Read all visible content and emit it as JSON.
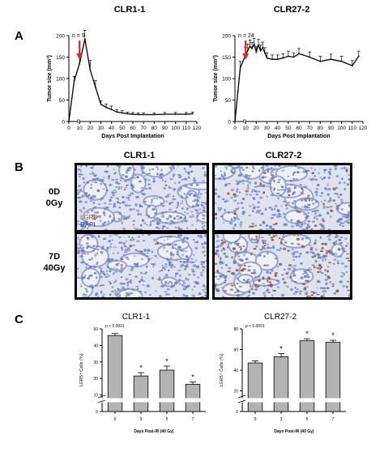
{
  "panels": {
    "a": "A",
    "b": "B",
    "c": "C"
  },
  "panel_a": {
    "left_title": "CLR1-1",
    "right_title": "CLR27-2",
    "left_n": "n = 9",
    "right_n": "n = 24"
  },
  "panel_b": {
    "col1": "CLR1-1",
    "col2": "CLR27-2",
    "row1_line1": "0D",
    "row1_line2": "0Gy",
    "row2_line1": "7D",
    "row2_line2": "40Gy",
    "stain1": "LGR5",
    "stain2": "DAPI"
  },
  "panel_c": {
    "left_title": "CLR1-1",
    "right_title": "CLR27-2",
    "left_p": "p < 0.0001",
    "right_p": "p < 0.0001"
  },
  "colors": {
    "arrow": "#e0252b",
    "bar": "#b3b3b3",
    "brown_stain": "#8a4a22",
    "blue_stain": "#6f7fb8"
  },
  "chart_data": [
    {
      "type": "line",
      "title": "CLR1-1",
      "xlabel": "Days Post Implantation",
      "ylabel": "Tumor size (mm³)",
      "xlim": [
        0,
        120
      ],
      "ylim": [
        0,
        200
      ],
      "xticks": [
        0,
        10,
        20,
        30,
        40,
        50,
        60,
        70,
        80,
        90,
        100,
        110,
        120
      ],
      "yticks": [
        0,
        50,
        100,
        150,
        200
      ],
      "x": [
        0,
        5,
        10,
        15,
        20,
        25,
        30,
        35,
        40,
        45,
        50,
        55,
        60,
        65,
        70,
        80,
        90,
        100,
        110,
        116
      ],
      "values": [
        0,
        95,
        135,
        192,
        120,
        80,
        40,
        33,
        28,
        22,
        20,
        18,
        17,
        16,
        16,
        16,
        17,
        17,
        17,
        18
      ],
      "errors": [
        0,
        10,
        18,
        20,
        22,
        15,
        8,
        8,
        8,
        6,
        5,
        4,
        4,
        4,
        4,
        4,
        4,
        4,
        4,
        4
      ],
      "annotation": "n = 9",
      "arrow_day": 10
    },
    {
      "type": "line",
      "title": "CLR27-2",
      "xlabel": "Days Post Implantation",
      "ylabel": "Tumor size (mm³)",
      "xlim": [
        0,
        120
      ],
      "ylim": [
        0,
        200
      ],
      "xticks": [
        0,
        10,
        20,
        30,
        40,
        50,
        60,
        70,
        80,
        90,
        100,
        110,
        120
      ],
      "yticks": [
        0,
        50,
        100,
        150,
        200
      ],
      "x": [
        0,
        5,
        10,
        12,
        14,
        16,
        18,
        20,
        22,
        24,
        26,
        28,
        30,
        35,
        40,
        45,
        50,
        55,
        60,
        70,
        80,
        90,
        100,
        110,
        116
      ],
      "values": [
        0,
        125,
        155,
        165,
        175,
        170,
        180,
        162,
        178,
        165,
        172,
        160,
        148,
        145,
        145,
        148,
        152,
        150,
        158,
        150,
        140,
        145,
        140,
        130,
        152
      ],
      "errors": [
        0,
        15,
        18,
        15,
        15,
        14,
        14,
        13,
        13,
        13,
        13,
        12,
        12,
        10,
        10,
        10,
        12,
        10,
        12,
        12,
        12,
        12,
        12,
        12,
        12
      ],
      "annotation": "n = 24",
      "arrow_day": 10
    },
    {
      "type": "bar",
      "title": "CLR1-1",
      "xlabel": "Days Post-IR (40 Gy)",
      "ylabel": "LGR5⁺ Cells (%)",
      "categories": [
        "0",
        "3",
        "5",
        "7"
      ],
      "values": [
        46,
        21.5,
        25,
        16.5
      ],
      "errors": [
        1.2,
        2,
        2.5,
        1.3
      ],
      "significance": [
        "",
        "*",
        "*",
        "*"
      ],
      "yticks": [
        0,
        10,
        20,
        30,
        40,
        50
      ],
      "ylim": [
        0,
        50
      ],
      "axis_break": true,
      "annotation": "p < 0.0001"
    },
    {
      "type": "bar",
      "title": "CLR27-2",
      "xlabel": "Days Post-IR (40 Gy)",
      "ylabel": "LGR5⁺ Cells (%)",
      "categories": [
        "0",
        "3",
        "5",
        "7"
      ],
      "values": [
        47,
        53,
        68.5,
        67
      ],
      "errors": [
        2,
        3,
        2,
        2
      ],
      "significance": [
        "",
        "*",
        "*",
        "*"
      ],
      "yticks": [
        0,
        20,
        40,
        60,
        80
      ],
      "ylim": [
        0,
        80
      ],
      "axis_break": true,
      "annotation": "p < 0.0001"
    }
  ]
}
